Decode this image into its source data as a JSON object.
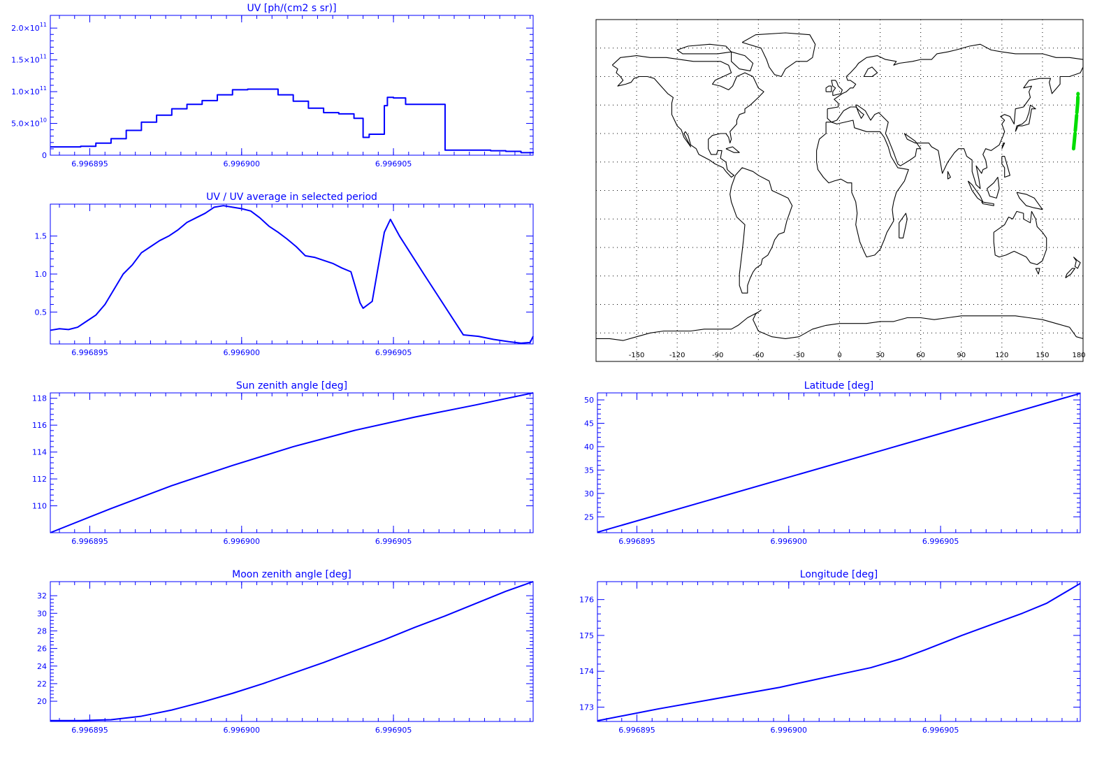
{
  "chart_data": [
    {
      "id": "uv",
      "type": "line",
      "step": true,
      "title": "UV [ph/(cm2 s sr)]",
      "title_tex": {
        "base": "UV [ph/(cm^2 s sr)]"
      },
      "xlabel": "",
      "ylabel": "",
      "xlim": [
        6.9968937,
        6.9969096
      ],
      "ylim": [
        0,
        220000000000.0
      ],
      "x_ticks": [
        6.996895,
        6.9969,
        6.996905
      ],
      "x_tick_labels": [
        "6.996895",
        "6.996900",
        "6.996905"
      ],
      "y_ticks": [
        0,
        50000000000.0,
        100000000000.0,
        150000000000.0,
        200000000000.0
      ],
      "y_tick_labels": [
        {
          "mantissa": "0",
          "exp": ""
        },
        {
          "mantissa": "5.0×10",
          "exp": "10"
        },
        {
          "mantissa": "1.0×10",
          "exp": "11"
        },
        {
          "mantissa": "1.5×10",
          "exp": "11"
        },
        {
          "mantissa": "2.0×10",
          "exp": "11"
        }
      ],
      "color": "#0000ff",
      "x": [
        6.9968937,
        6.9968942,
        6.9968947,
        6.9968952,
        6.9968957,
        6.9968962,
        6.9968967,
        6.9968972,
        6.9968977,
        6.9968982,
        6.9968987,
        6.9968992,
        6.9968997,
        6.9969002,
        6.9969007,
        6.9969012,
        6.9969017,
        6.9969022,
        6.9969027,
        6.9969032,
        6.9969037,
        6.996904,
        6.9969042,
        6.9969045,
        6.9969047,
        6.9969048,
        6.996905,
        6.9969054,
        6.9969062,
        6.9969067,
        6.9969072,
        6.9969077,
        6.9969082,
        6.9969087,
        6.9969092,
        6.9969096
      ],
      "values": [
        13000000000.0,
        13000000000.0,
        14000000000.0,
        19000000000.0,
        26000000000.0,
        39000000000.0,
        52000000000.0,
        63000000000.0,
        73000000000.0,
        80000000000.0,
        86000000000.0,
        95000000000.0,
        103000000000.0,
        104000000000.0,
        104000000000.0,
        95000000000.0,
        85000000000.0,
        74000000000.0,
        67000000000.0,
        65000000000.0,
        58000000000.0,
        28000000000.0,
        33000000000.0,
        33000000000.0,
        78000000000.0,
        91000000000.0,
        90000000000.0,
        80000000000.0,
        80000000000.0,
        8000000000.0,
        8000000000.0,
        8000000000.0,
        7000000000.0,
        6000000000.0,
        4000000000.0,
        5000000000.0
      ]
    },
    {
      "id": "uv-ratio",
      "type": "line",
      "title": "UV / UV average in selected period",
      "xlabel": "",
      "ylabel": "",
      "xlim": [
        6.9968937,
        6.9969096
      ],
      "ylim": [
        0.08,
        1.92
      ],
      "x_ticks": [
        6.996895,
        6.9969,
        6.996905
      ],
      "x_tick_labels": [
        "6.996895",
        "6.996900",
        "6.996905"
      ],
      "y_ticks": [
        0.5,
        1.0,
        1.5
      ],
      "y_tick_labels": [
        "0.5",
        "1.0",
        "1.5"
      ],
      "color": "#0000ff",
      "x": [
        6.9968937,
        6.996894,
        6.9968943,
        6.9968946,
        6.9968949,
        6.9968952,
        6.9968955,
        6.9968958,
        6.9968961,
        6.9968964,
        6.9968967,
        6.996897,
        6.9968973,
        6.9968976,
        6.9968979,
        6.9968982,
        6.9968985,
        6.9968988,
        6.9968991,
        6.9968994,
        6.9968997,
        6.9969,
        6.9969003,
        6.9969006,
        6.9969009,
        6.9969012,
        6.9969015,
        6.9969018,
        6.9969021,
        6.9969024,
        6.9969027,
        6.996903,
        6.9969033,
        6.9969036,
        6.9969039,
        6.996904,
        6.9969043,
        6.9969045,
        6.9969047,
        6.9969049,
        6.9969052,
        6.996906,
        6.9969073,
        6.9969078,
        6.9969083,
        6.9969088,
        6.9969092,
        6.9969095,
        6.9969096
      ],
      "values": [
        0.26,
        0.28,
        0.27,
        0.3,
        0.38,
        0.46,
        0.6,
        0.8,
        1.0,
        1.12,
        1.28,
        1.36,
        1.44,
        1.5,
        1.58,
        1.68,
        1.74,
        1.8,
        1.88,
        1.9,
        1.88,
        1.86,
        1.83,
        1.74,
        1.63,
        1.55,
        1.46,
        1.36,
        1.24,
        1.22,
        1.18,
        1.14,
        1.08,
        1.03,
        0.62,
        0.55,
        0.64,
        1.1,
        1.55,
        1.72,
        1.5,
        1.0,
        0.2,
        0.18,
        0.14,
        0.11,
        0.09,
        0.1,
        0.18
      ]
    },
    {
      "id": "sun-zenith",
      "type": "line",
      "title": "Sun zenith angle [deg]",
      "xlabel": "",
      "ylabel": "",
      "xlim": [
        6.9968937,
        6.9969096
      ],
      "ylim": [
        108,
        118.4
      ],
      "x_ticks": [
        6.996895,
        6.9969,
        6.996905
      ],
      "x_tick_labels": [
        "6.996895",
        "6.996900",
        "6.996905"
      ],
      "y_ticks": [
        110,
        112,
        114,
        116,
        118
      ],
      "y_tick_labels": [
        "110",
        "112",
        "114",
        "116",
        "118"
      ],
      "color": "#0000ff",
      "x": [
        6.9968937,
        6.9968957,
        6.9968977,
        6.9968997,
        6.9969017,
        6.9969037,
        6.9969057,
        6.9969077,
        6.9969096
      ],
      "values": [
        108.0,
        109.8,
        111.5,
        113.0,
        114.4,
        115.6,
        116.6,
        117.5,
        118.4
      ]
    },
    {
      "id": "moon-zenith",
      "type": "line",
      "title": "Moon zenith angle [deg]",
      "xlabel": "",
      "ylabel": "",
      "xlim": [
        6.9968937,
        6.9969096
      ],
      "ylim": [
        17.7,
        33.6
      ],
      "x_ticks": [
        6.996895,
        6.9969,
        6.996905
      ],
      "x_tick_labels": [
        "6.996895",
        "6.996900",
        "6.996905"
      ],
      "y_ticks": [
        20,
        22,
        24,
        26,
        28,
        30,
        32
      ],
      "y_tick_labels": [
        "20",
        "22",
        "24",
        "26",
        "28",
        "30",
        "32"
      ],
      "color": "#0000ff",
      "x": [
        6.9968937,
        6.9968947,
        6.9968957,
        6.9968967,
        6.9968977,
        6.9968987,
        6.9968997,
        6.9969007,
        6.9969017,
        6.9969027,
        6.9969037,
        6.9969047,
        6.9969057,
        6.9969067,
        6.9969077,
        6.9969087,
        6.9969096
      ],
      "values": [
        17.8,
        17.8,
        17.9,
        18.3,
        19.0,
        19.9,
        20.9,
        22.0,
        23.2,
        24.4,
        25.7,
        27.0,
        28.4,
        29.7,
        31.1,
        32.5,
        33.6
      ]
    },
    {
      "id": "map",
      "type": "map",
      "xlim": [
        -180,
        180
      ],
      "ylim": [
        -90,
        90
      ],
      "x_ticks": [
        -150,
        -120,
        -90,
        -60,
        -30,
        0,
        30,
        60,
        90,
        120,
        150,
        180
      ],
      "x_tick_labels": [
        "-150",
        "-120",
        "-90",
        "-60",
        "-30",
        "0",
        "30",
        "60",
        "90",
        "120",
        "150",
        "180"
      ],
      "grid": true,
      "track_color": "#00dd00",
      "track": {
        "lon": [
          173,
          173.8,
          174.6,
          175.3,
          176.0,
          176.3
        ],
        "lat": [
          22,
          28,
          34,
          40,
          46,
          51
        ]
      }
    },
    {
      "id": "latitude",
      "type": "line",
      "title": "Latitude [deg]",
      "xlabel": "",
      "ylabel": "",
      "xlim": [
        6.9968937,
        6.9969096
      ],
      "ylim": [
        21.6,
        51.5
      ],
      "x_ticks": [
        6.996895,
        6.9969,
        6.996905
      ],
      "x_tick_labels": [
        "6.996895",
        "6.996900",
        "6.996905"
      ],
      "y_ticks": [
        25,
        30,
        35,
        40,
        45,
        50
      ],
      "y_tick_labels": [
        "25",
        "30",
        "35",
        "40",
        "45",
        "50"
      ],
      "color": "#0000ff",
      "x": [
        6.9968937,
        6.9969096
      ],
      "values": [
        21.7,
        51.4
      ]
    },
    {
      "id": "longitude",
      "type": "line",
      "title": "Longitude [deg]",
      "xlabel": "",
      "ylabel": "",
      "xlim": [
        6.9968937,
        6.9969096
      ],
      "ylim": [
        172.6,
        176.5
      ],
      "x_ticks": [
        6.996895,
        6.9969,
        6.996905
      ],
      "x_tick_labels": [
        "6.996895",
        "6.996900",
        "6.996905"
      ],
      "y_ticks": [
        173,
        174,
        175,
        176
      ],
      "y_tick_labels": [
        "173",
        "174",
        "175",
        "176"
      ],
      "color": "#0000ff",
      "x": [
        6.9968937,
        6.9968957,
        6.9968977,
        6.9968997,
        6.9969005,
        6.9969017,
        6.9969027,
        6.9969037,
        6.9969045,
        6.9969057,
        6.9969077,
        6.9969085,
        6.9969096
      ],
      "values": [
        172.62,
        172.95,
        173.25,
        173.55,
        173.7,
        173.92,
        174.1,
        174.35,
        174.6,
        175.0,
        175.62,
        175.9,
        176.45
      ]
    }
  ]
}
